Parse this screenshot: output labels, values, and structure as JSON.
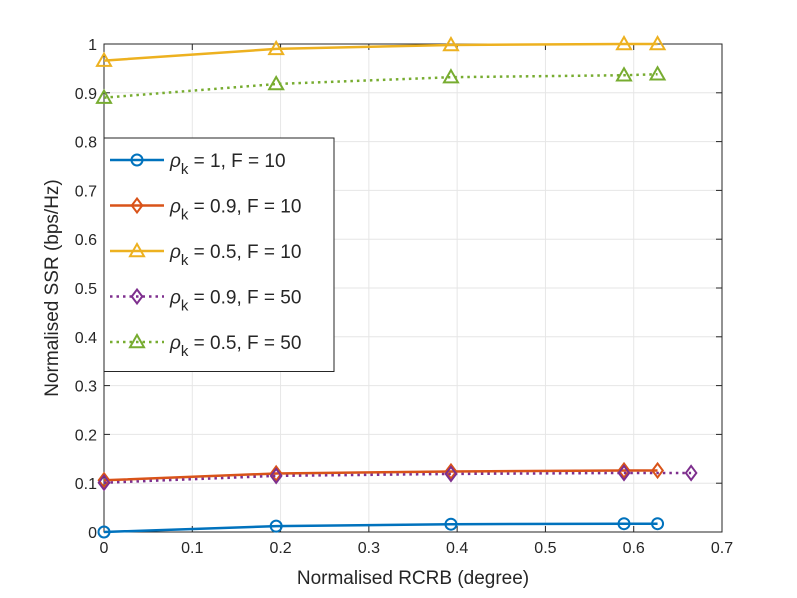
{
  "chart_data": {
    "type": "line",
    "title": "",
    "xlabel": "Normalised RCRB (degree)",
    "ylabel": "Normalised SSR (bps/Hz)",
    "xlim": [
      0,
      0.7
    ],
    "ylim": [
      0,
      1
    ],
    "grid": true,
    "legend_position": "upper-left",
    "x_ticks": [
      "0",
      "0.1",
      "0.2",
      "0.3",
      "0.4",
      "0.5",
      "0.6",
      "0.7"
    ],
    "y_ticks": [
      "0",
      "0.1",
      "0.2",
      "0.3",
      "0.4",
      "0.5",
      "0.6",
      "0.7",
      "0.8",
      "0.9",
      "1"
    ],
    "series": [
      {
        "name": "ρk = 1, F = 10",
        "legend": {
          "symbol": "ρ",
          "sub": "k",
          "rest": " = 1, F = 10"
        },
        "color": "#0072BD",
        "line": "solid",
        "marker": "circle",
        "x": [
          0,
          0.195,
          0.393,
          0.589,
          0.627
        ],
        "y": [
          0.0,
          0.012,
          0.016,
          0.017,
          0.017
        ]
      },
      {
        "name": "ρk = 0.9, F = 10",
        "legend": {
          "symbol": "ρ",
          "sub": "k",
          "rest": " = 0.9, F = 10"
        },
        "color": "#D95319",
        "line": "solid",
        "marker": "diamond",
        "x": [
          0,
          0.195,
          0.393,
          0.589,
          0.627
        ],
        "y": [
          0.106,
          0.12,
          0.124,
          0.126,
          0.126
        ]
      },
      {
        "name": "ρk = 0.5, F = 10",
        "legend": {
          "symbol": "ρ",
          "sub": "k",
          "rest": " = 0.5, F = 10"
        },
        "color": "#EDB120",
        "line": "solid",
        "marker": "triangle",
        "x": [
          0,
          0.195,
          0.393,
          0.589,
          0.627
        ],
        "y": [
          0.966,
          0.99,
          0.998,
          1.0,
          1.0
        ]
      },
      {
        "name": "ρk = 0.9, F = 50",
        "legend": {
          "symbol": "ρ",
          "sub": "k",
          "rest": " = 0.9, F = 50"
        },
        "color": "#7E2F8E",
        "line": "dotted",
        "marker": "diamond",
        "x": [
          0,
          0.195,
          0.393,
          0.589,
          0.665
        ],
        "y": [
          0.101,
          0.115,
          0.119,
          0.121,
          0.121
        ]
      },
      {
        "name": "ρk = 0.5, F = 50",
        "legend": {
          "symbol": "ρ",
          "sub": "k",
          "rest": " = 0.5, F = 50"
        },
        "color": "#77AC30",
        "line": "dotted",
        "marker": "triangle",
        "x": [
          0,
          0.195,
          0.393,
          0.589,
          0.627
        ],
        "y": [
          0.89,
          0.918,
          0.932,
          0.936,
          0.938
        ]
      }
    ]
  }
}
